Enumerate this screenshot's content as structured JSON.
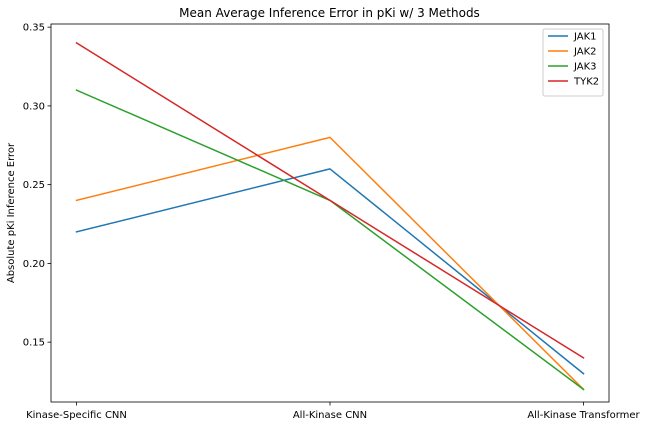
{
  "chart_data": {
    "type": "line",
    "title": "Mean Average Inference Error in pKi w/ 3 Methods",
    "xlabel": "",
    "ylabel": "Absolute pKi Inference Error",
    "categories": [
      "Kinase-Specific CNN",
      "All-Kinase CNN",
      "All-Kinase Transformer"
    ],
    "ylim": [
      0.112,
      0.352
    ],
    "yticks": [
      "0.15",
      "0.20",
      "0.25",
      "0.30",
      "0.35"
    ],
    "grid": false,
    "legend_position": "top-right",
    "series": [
      {
        "name": "JAK1",
        "color": "#1f77b4",
        "values": [
          0.22,
          0.26,
          0.13
        ]
      },
      {
        "name": "JAK2",
        "color": "#ff7f0e",
        "values": [
          0.24,
          0.28,
          0.12
        ]
      },
      {
        "name": "JAK3",
        "color": "#2ca02c",
        "values": [
          0.31,
          0.24,
          0.12
        ]
      },
      {
        "name": "TYK2",
        "color": "#d62728",
        "values": [
          0.34,
          0.24,
          0.14
        ]
      }
    ]
  }
}
